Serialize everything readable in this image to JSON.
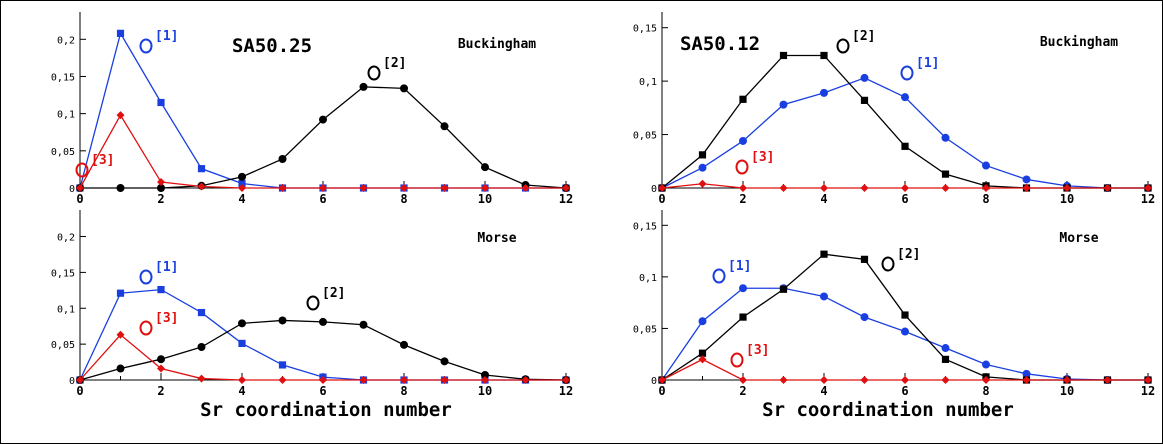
{
  "chart_data": [
    {
      "type": "line",
      "sample": "SA50.25",
      "potential": "Buckingham",
      "x": [
        0,
        1,
        2,
        3,
        4,
        5,
        6,
        7,
        8,
        9,
        10,
        11,
        12
      ],
      "xlim": [
        0,
        12
      ],
      "ylim": [
        0,
        0.23
      ],
      "xticks": [
        "0",
        "2",
        "4",
        "6",
        "8",
        "10",
        "12"
      ],
      "yticks": [
        {
          "value": 0,
          "label": "0"
        },
        {
          "value": 0.05,
          "label": "0,05"
        },
        {
          "value": 0.1,
          "label": "0,1"
        },
        {
          "value": 0.15,
          "label": "0,15"
        },
        {
          "value": 0.2,
          "label": "0,2"
        }
      ],
      "series": [
        {
          "site": "[1]",
          "color": "#1a3fe0",
          "marker": "square",
          "values": [
            0,
            0.208,
            0.115,
            0.026,
            0.006,
            0,
            0,
            0,
            0,
            0,
            0,
            0,
            0
          ]
        },
        {
          "site": "[2]",
          "color": "#000000",
          "marker": "circle",
          "values": [
            0,
            0,
            0,
            0.003,
            0.015,
            0.039,
            0.092,
            0.136,
            0.134,
            0.083,
            0.028,
            0.004,
            0
          ]
        },
        {
          "site": "[3]",
          "color": "#e01010",
          "marker": "diamond",
          "values": [
            0,
            0.098,
            0.008,
            0.002,
            0,
            0,
            0,
            0,
            0,
            0,
            0,
            0,
            0
          ]
        }
      ]
    },
    {
      "type": "line",
      "sample": "SA50.12",
      "potential": "Buckingham",
      "x": [
        0,
        1,
        2,
        3,
        4,
        5,
        6,
        7,
        8,
        9,
        10,
        11,
        12
      ],
      "xlim": [
        0,
        12
      ],
      "ylim": [
        0,
        0.16
      ],
      "xticks": [
        "0",
        "2",
        "4",
        "6",
        "8",
        "10",
        "12"
      ],
      "yticks": [
        {
          "value": 0,
          "label": "0"
        },
        {
          "value": 0.05,
          "label": "0,05"
        },
        {
          "value": 0.1,
          "label": "0,1"
        },
        {
          "value": 0.15,
          "label": "0,15"
        }
      ],
      "series": [
        {
          "site": "[1]",
          "color": "#1a3fe0",
          "marker": "circle",
          "values": [
            0,
            0.019,
            0.044,
            0.078,
            0.089,
            0.103,
            0.085,
            0.047,
            0.021,
            0.008,
            0.002,
            0,
            0
          ]
        },
        {
          "site": "[2]",
          "color": "#000000",
          "marker": "square",
          "values": [
            0,
            0.031,
            0.083,
            0.124,
            0.124,
            0.082,
            0.039,
            0.013,
            0.002,
            0,
            0,
            0,
            0
          ]
        },
        {
          "site": "[3]",
          "color": "#e01010",
          "marker": "diamond",
          "values": [
            0,
            0.004,
            0,
            0,
            0,
            0,
            0,
            0,
            0,
            0,
            0,
            0,
            0
          ]
        }
      ]
    },
    {
      "type": "line",
      "sample": "",
      "potential": "Morse",
      "x": [
        0,
        1,
        2,
        3,
        4,
        5,
        6,
        7,
        8,
        9,
        10,
        11,
        12
      ],
      "xlim": [
        0,
        12
      ],
      "ylim": [
        0,
        0.23
      ],
      "xticks": [
        "0",
        "2",
        "4",
        "6",
        "8",
        "10",
        "12"
      ],
      "yticks": [
        {
          "value": 0,
          "label": "0"
        },
        {
          "value": 0.05,
          "label": "0,05"
        },
        {
          "value": 0.1,
          "label": "0,1"
        },
        {
          "value": 0.15,
          "label": "0,15"
        },
        {
          "value": 0.2,
          "label": "0,2"
        }
      ],
      "series": [
        {
          "site": "[1]",
          "color": "#1a3fe0",
          "marker": "square",
          "values": [
            0,
            0.121,
            0.126,
            0.094,
            0.051,
            0.021,
            0.004,
            0,
            0,
            0,
            0,
            0,
            0
          ]
        },
        {
          "site": "[2]",
          "color": "#000000",
          "marker": "circle",
          "values": [
            0,
            0.016,
            0.029,
            0.046,
            0.079,
            0.083,
            0.081,
            0.077,
            0.049,
            0.026,
            0.007,
            0.001,
            0
          ]
        },
        {
          "site": "[3]",
          "color": "#e01010",
          "marker": "diamond",
          "values": [
            0,
            0.063,
            0.016,
            0.002,
            0,
            0,
            0,
            0,
            0,
            0,
            0,
            0,
            0
          ]
        }
      ]
    },
    {
      "type": "line",
      "sample": "",
      "potential": "Morse",
      "x": [
        0,
        1,
        2,
        3,
        4,
        5,
        6,
        7,
        8,
        9,
        10,
        11,
        12
      ],
      "xlim": [
        0,
        12
      ],
      "ylim": [
        0,
        0.16
      ],
      "xticks": [
        "0",
        "2",
        "4",
        "6",
        "8",
        "10",
        "12"
      ],
      "yticks": [
        {
          "value": 0,
          "label": "0"
        },
        {
          "value": 0.05,
          "label": "0,05"
        },
        {
          "value": 0.1,
          "label": "0,1"
        },
        {
          "value": 0.15,
          "label": "0,15"
        }
      ],
      "series": [
        {
          "site": "[1]",
          "color": "#1a3fe0",
          "marker": "circle",
          "values": [
            0,
            0.057,
            0.089,
            0.089,
            0.081,
            0.061,
            0.047,
            0.031,
            0.015,
            0.006,
            0.001,
            0,
            0
          ]
        },
        {
          "site": "[2]",
          "color": "#000000",
          "marker": "square",
          "values": [
            0,
            0.026,
            0.061,
            0.088,
            0.122,
            0.117,
            0.063,
            0.02,
            0.003,
            0,
            0,
            0,
            0
          ]
        },
        {
          "site": "[3]",
          "color": "#e01010",
          "marker": "diamond",
          "values": [
            0,
            0.02,
            0,
            0,
            0,
            0,
            0,
            0,
            0,
            0,
            0,
            0,
            0
          ]
        }
      ]
    }
  ],
  "xlabel": "Sr coordination number",
  "site_marker": "O"
}
